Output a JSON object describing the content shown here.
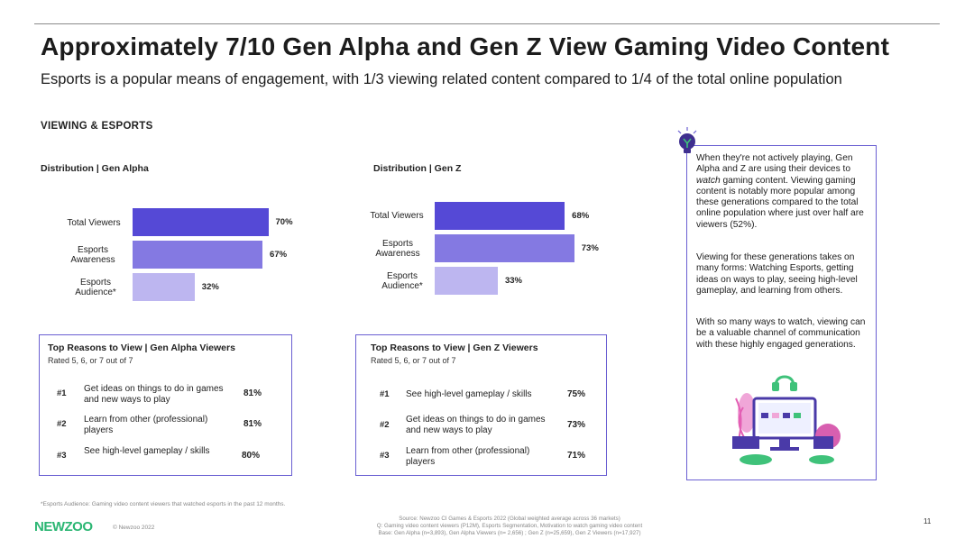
{
  "header": {
    "title": "Approximately 7/10 Gen Alpha and Gen Z View Gaming Video Content",
    "subtitle": "Esports is a popular means of engagement, with 1/3 viewing related content compared to 1/4 of the total online population",
    "section": "VIEWING & ESPORTS"
  },
  "chart_data": [
    {
      "type": "bar",
      "orientation": "horizontal",
      "title": "Distribution | Gen Alpha",
      "categories": [
        "Total Viewers",
        "Esports Awareness",
        "Esports Audience*"
      ],
      "values": [
        70,
        67,
        32
      ],
      "value_labels": [
        "70%",
        "67%",
        "32%"
      ],
      "colors": [
        "#5549d6",
        "#8479e2",
        "#bdb6f0"
      ],
      "xlim": [
        0,
        100
      ]
    },
    {
      "type": "bar",
      "orientation": "horizontal",
      "title": "Distribution | Gen Z",
      "categories": [
        "Total Viewers",
        "Esports Awareness",
        "Esports Audience*"
      ],
      "values": [
        68,
        73,
        33
      ],
      "value_labels": [
        "68%",
        "73%",
        "33%"
      ],
      "colors": [
        "#5549d6",
        "#8479e2",
        "#bdb6f0"
      ],
      "xlim": [
        0,
        100
      ]
    }
  ],
  "reasons": {
    "alpha": {
      "title": "Top Reasons to View | Gen Alpha Viewers",
      "sub": "Rated 5, 6, or 7 out of 7",
      "items": [
        {
          "rank": "#1",
          "text": "Get ideas on things to do in games and new ways to play",
          "pct": "81%"
        },
        {
          "rank": "#2",
          "text": "Learn from other (professional) players",
          "pct": "81%"
        },
        {
          "rank": "#3",
          "text": "See high-level gameplay / skills",
          "pct": "80%"
        }
      ]
    },
    "genz": {
      "title": "Top Reasons to View | Gen Z Viewers",
      "sub": "Rated 5, 6, or 7 out of 7",
      "items": [
        {
          "rank": "#1",
          "text": "See high-level gameplay / skills",
          "pct": "75%"
        },
        {
          "rank": "#2",
          "text": "Get ideas on things to do in games and new ways to play",
          "pct": "73%"
        },
        {
          "rank": "#3",
          "text": "Learn from other (professional) players",
          "pct": "71%"
        }
      ]
    }
  },
  "sidebar": {
    "p1_before": "When they're not actively playing, Gen Alpha and Z are using their devices to ",
    "p1_em": "watch",
    "p1_after": " gaming content. Viewing gaming content is notably more popular among these generations compared to the total online population where just over half are viewers (52%).",
    "p2": "Viewing for these generations takes on many forms: Watching Esports, getting ideas on ways to play, seeing high-level gameplay, and learning from others.",
    "p3": "With so many ways to watch, viewing can be a valuable channel of communication with these highly engaged generations."
  },
  "footer": {
    "footnote": "*Esports Audience: Gaming video content viewers that watched esports in the past 12 months.",
    "source1": "Source: Newzoo CI Games & Esports 2022 (Global weighted average across 36 markets)",
    "source2": "Q: Gaming video content viewers (P12M), Esports Segmentation, Motivation to watch gaming video content",
    "source3": "Base: Gen Alpha (n=3,893), Gen Alpha Viewers (n= 2,656) ; Gen Z (n=25,659), Gen Z Viewers (n=17,927)",
    "logo": "NEWZOO",
    "copyright": "© Newzoo 2022",
    "page": "11"
  }
}
